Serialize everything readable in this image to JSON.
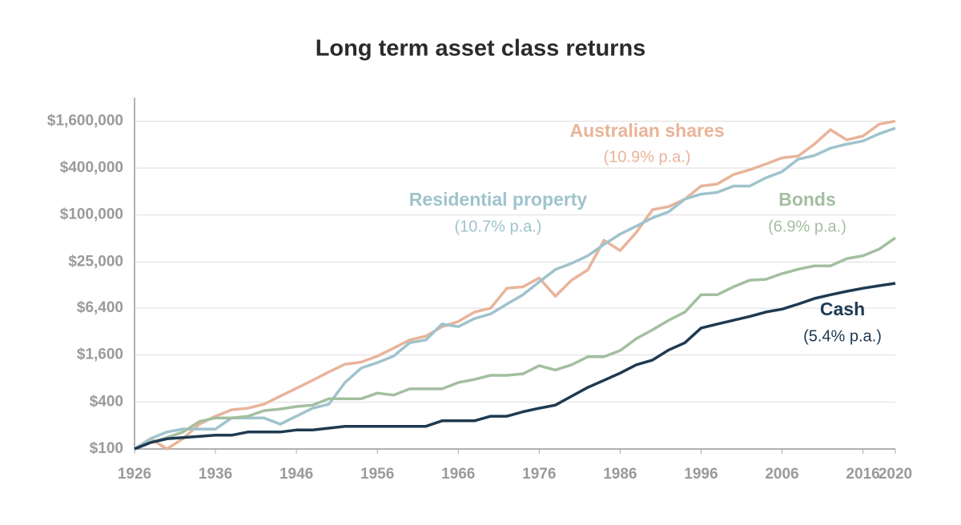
{
  "chart_data": {
    "type": "line",
    "title": "Long term asset class returns",
    "log_y": true,
    "grid": true,
    "xlim": [
      1926,
      2020
    ],
    "ylim": [
      100,
      3200000
    ],
    "xticks": [
      1926,
      1936,
      1946,
      1956,
      1966,
      1976,
      1986,
      1996,
      2006,
      2016,
      2020
    ],
    "yticks": [
      {
        "value": 100,
        "label": "$100"
      },
      {
        "value": 400,
        "label": "$400"
      },
      {
        "value": 1600,
        "label": "$1,600"
      },
      {
        "value": 6400,
        "label": "$6,400"
      },
      {
        "value": 25000,
        "label": "$25,000"
      },
      {
        "value": 100000,
        "label": "$100,000"
      },
      {
        "value": 400000,
        "label": "$400,000"
      },
      {
        "value": 1600000,
        "label": "$1,600,000"
      }
    ],
    "x": [
      1926,
      1928,
      1930,
      1932,
      1934,
      1936,
      1938,
      1940,
      1942,
      1944,
      1946,
      1948,
      1950,
      1952,
      1954,
      1956,
      1958,
      1960,
      1962,
      1964,
      1966,
      1968,
      1970,
      1972,
      1974,
      1976,
      1978,
      1980,
      1982,
      1984,
      1986,
      1988,
      1990,
      1992,
      1994,
      1996,
      1998,
      2000,
      2002,
      2004,
      2006,
      2008,
      2010,
      2012,
      2014,
      2016,
      2018,
      2020
    ],
    "series": [
      {
        "name": "Australian shares",
        "rate": "(10.9% p.a.)",
        "color": "#e8b49a",
        "values": [
          100,
          136,
          100,
          136,
          208,
          263,
          318,
          333,
          375,
          475,
          600,
          760,
          970,
          1220,
          1300,
          1550,
          1960,
          2500,
          2800,
          3700,
          4300,
          5700,
          6400,
          11500,
          12000,
          15600,
          9100,
          14600,
          19800,
          47500,
          35000,
          60000,
          117000,
          128000,
          160000,
          235000,
          250000,
          330000,
          380000,
          450000,
          540000,
          570000,
          810000,
          1240000,
          920000,
          1030000,
          1460000,
          1600000
        ]
      },
      {
        "name": "Residential property",
        "rate": "(10.7% p.a.)",
        "color": "#9fc3cc",
        "values": [
          100,
          136,
          165,
          180,
          180,
          180,
          250,
          250,
          250,
          208,
          263,
          333,
          375,
          710,
          1090,
          1280,
          1550,
          2300,
          2500,
          4000,
          3700,
          4700,
          5400,
          7200,
          9500,
          13900,
          20000,
          24000,
          30000,
          42000,
          57000,
          72000,
          92000,
          110000,
          160000,
          185000,
          195000,
          235000,
          235000,
          300000,
          360000,
          520000,
          580000,
          720000,
          810000,
          890000,
          1100000,
          1300000
        ]
      },
      {
        "name": "Bonds",
        "rate": "(6.9% p.a.)",
        "color": "#a3bfa0",
        "values": [
          100,
          121,
          140,
          165,
          225,
          250,
          250,
          263,
          310,
          325,
          350,
          365,
          440,
          440,
          440,
          520,
          490,
          590,
          590,
          590,
          710,
          780,
          880,
          880,
          920,
          1170,
          1030,
          1200,
          1520,
          1520,
          1830,
          2600,
          3370,
          4470,
          5700,
          9500,
          9500,
          12000,
          14600,
          15000,
          17700,
          20200,
          22300,
          22300,
          27600,
          30000,
          36500,
          51000
        ]
      },
      {
        "name": "Cash",
        "rate": "(5.4% p.a.)",
        "color": "#1e3a52",
        "values": [
          100,
          121,
          135,
          140,
          145,
          150,
          150,
          165,
          165,
          165,
          175,
          175,
          185,
          195,
          195,
          195,
          195,
          195,
          195,
          230,
          230,
          230,
          263,
          263,
          300,
          333,
          365,
          475,
          615,
          760,
          940,
          1200,
          1380,
          1860,
          2300,
          3550,
          4000,
          4470,
          5000,
          5700,
          6200,
          7200,
          8500,
          9500,
          10500,
          11500,
          12400,
          13300
        ]
      }
    ]
  }
}
